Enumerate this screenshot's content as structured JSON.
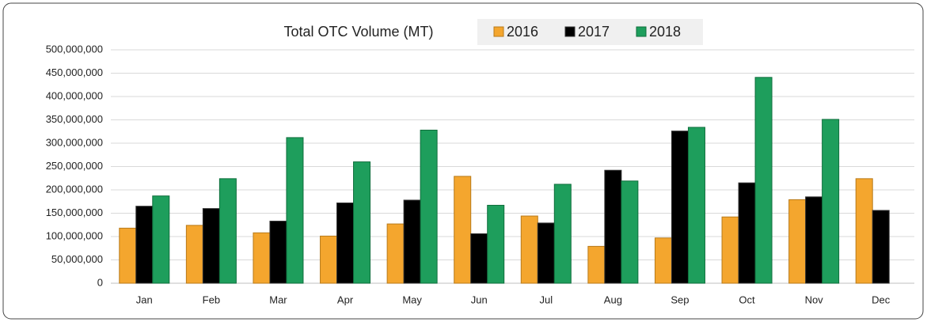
{
  "chart_data": {
    "type": "bar",
    "title": "Total OTC Volume (MT)",
    "categories": [
      "Jan",
      "Feb",
      "Mar",
      "Apr",
      "May",
      "Jun",
      "Jul",
      "Aug",
      "Sep",
      "Oct",
      "Nov",
      "Dec"
    ],
    "series": [
      {
        "name": "2016",
        "color": "#f4a62e",
        "values": [
          118000000,
          124000000,
          108000000,
          101000000,
          127000000,
          229000000,
          144000000,
          79000000,
          97000000,
          142000000,
          179000000,
          224000000
        ]
      },
      {
        "name": "2017",
        "color": "#000000",
        "values": [
          165000000,
          160000000,
          133000000,
          172000000,
          178000000,
          106000000,
          129000000,
          242000000,
          326000000,
          215000000,
          185000000,
          156000000
        ]
      },
      {
        "name": "2018",
        "color": "#1e9e5c",
        "values": [
          187000000,
          224000000,
          312000000,
          260000000,
          328000000,
          167000000,
          212000000,
          219000000,
          334000000,
          441000000,
          351000000,
          null
        ]
      }
    ],
    "ylim": [
      0,
      500000000
    ],
    "yticks": [
      0,
      {
        "value": 50000000,
        "label": "50,000,000"
      },
      {
        "value": 100000000,
        "label": "100,000,000"
      },
      {
        "value": 150000000,
        "label": "150,000,000"
      },
      {
        "value": 200000000,
        "label": "200,000,000"
      },
      {
        "value": 250000000,
        "label": "250,000,000"
      },
      {
        "value": 300000000,
        "label": "300,000,000"
      },
      {
        "value": 350000000,
        "label": "350,000,000"
      },
      {
        "value": 400000000,
        "label": "400,000,000"
      },
      {
        "value": 450000000,
        "label": "450,000,000"
      },
      {
        "value": 500000000,
        "label": "500,000,000"
      }
    ],
    "grid": true
  }
}
